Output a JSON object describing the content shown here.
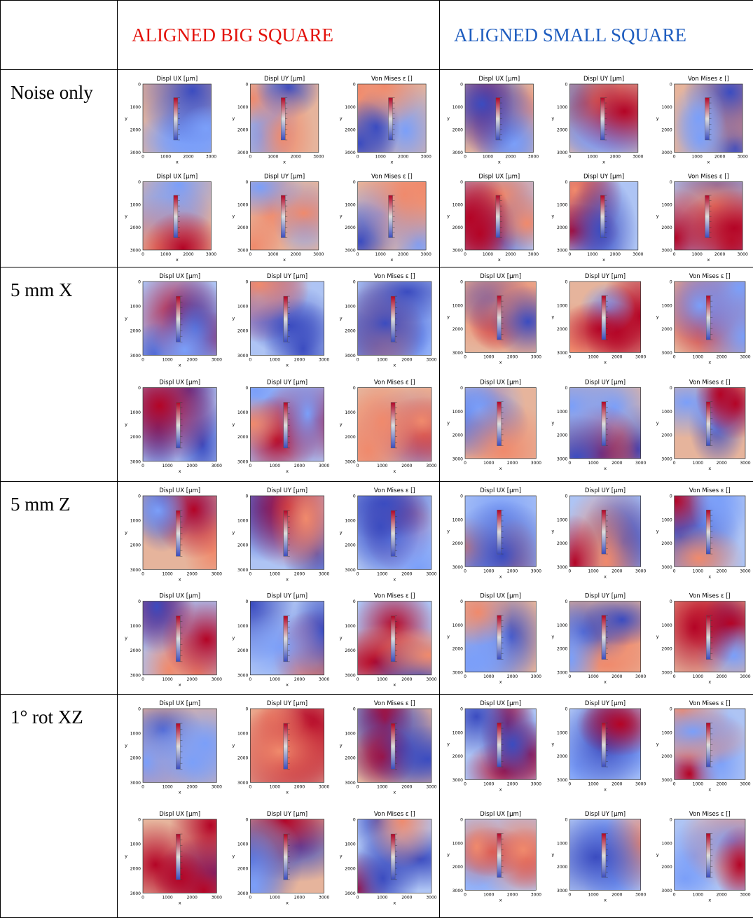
{
  "header": {
    "big_square": "ALIGNED BIG SQUARE",
    "small_square": "ALIGNED SMALL SQUARE"
  },
  "plot_titles": [
    "Displ UX [μm]",
    "Displ UY [μm]",
    "Von Mises ε []"
  ],
  "plot_axes": {
    "ticks": [
      "0",
      "1000",
      "2000",
      "3000"
    ],
    "x_label": "x",
    "y_label": "y"
  },
  "rows": [
    {
      "label": "Noise only"
    },
    {
      "label": "5 mm X"
    },
    {
      "label": "5 mm Z"
    },
    {
      "label": "1° rot XZ"
    }
  ]
}
